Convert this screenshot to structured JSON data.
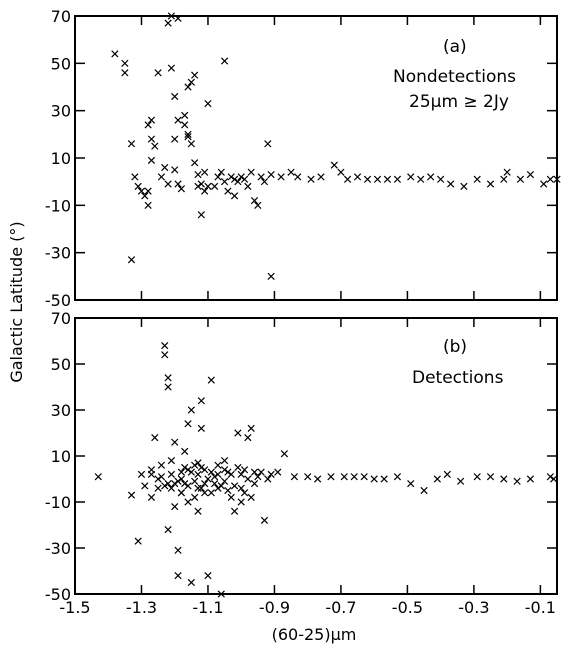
{
  "chart_data": [
    {
      "type": "scatter",
      "panel_label": "(a)",
      "annotations": [
        "Nondetections",
        "25μm ≥ 2Jy"
      ],
      "xlim": [
        -1.5,
        -0.05
      ],
      "ylim": [
        -50,
        70
      ],
      "yticks": [
        "70",
        "50",
        "30",
        "10",
        "-10",
        "-30",
        "-50"
      ],
      "points": [
        [
          -1.38,
          54
        ],
        [
          -1.35,
          50
        ],
        [
          -1.35,
          46
        ],
        [
          -1.33,
          16
        ],
        [
          -1.32,
          2
        ],
        [
          -1.31,
          -2
        ],
        [
          -1.3,
          -4
        ],
        [
          -1.29,
          -6
        ],
        [
          -1.28,
          -10
        ],
        [
          -1.28,
          -4
        ],
        [
          -1.28,
          24
        ],
        [
          -1.27,
          18
        ],
        [
          -1.27,
          26
        ],
        [
          -1.27,
          9
        ],
        [
          -1.26,
          15
        ],
        [
          -1.25,
          46
        ],
        [
          -1.24,
          2
        ],
        [
          -1.23,
          6
        ],
        [
          -1.22,
          -1
        ],
        [
          -1.22,
          67
        ],
        [
          -1.21,
          70
        ],
        [
          -1.21,
          48
        ],
        [
          -1.2,
          36
        ],
        [
          -1.2,
          18
        ],
        [
          -1.2,
          5
        ],
        [
          -1.19,
          69
        ],
        [
          -1.19,
          26
        ],
        [
          -1.19,
          -1
        ],
        [
          -1.18,
          -3
        ],
        [
          -1.17,
          28
        ],
        [
          -1.17,
          24
        ],
        [
          -1.16,
          40
        ],
        [
          -1.16,
          20
        ],
        [
          -1.16,
          19
        ],
        [
          -1.15,
          42
        ],
        [
          -1.15,
          16
        ],
        [
          -1.14,
          45
        ],
        [
          -1.14,
          8
        ],
        [
          -1.13,
          -2
        ],
        [
          -1.13,
          3
        ],
        [
          -1.12,
          -1
        ],
        [
          -1.12,
          -14
        ],
        [
          -1.11,
          4
        ],
        [
          -1.11,
          -4
        ],
        [
          -1.1,
          -2
        ],
        [
          -1.1,
          33
        ],
        [
          -1.08,
          -2
        ],
        [
          -1.07,
          2
        ],
        [
          -1.06,
          4
        ],
        [
          -1.05,
          51
        ],
        [
          -1.05,
          0
        ],
        [
          -1.04,
          -4
        ],
        [
          -1.03,
          2
        ],
        [
          -1.02,
          -6
        ],
        [
          -1.02,
          1
        ],
        [
          -1.01,
          0
        ],
        [
          -1.0,
          2
        ],
        [
          -0.99,
          1
        ],
        [
          -0.98,
          -2
        ],
        [
          -0.97,
          4
        ],
        [
          -0.96,
          -8
        ],
        [
          -0.95,
          -10
        ],
        [
          -0.94,
          2
        ],
        [
          -0.93,
          0
        ],
        [
          -0.92,
          16
        ],
        [
          -0.91,
          -40
        ],
        [
          -0.91,
          3
        ],
        [
          -0.88,
          2
        ],
        [
          -0.85,
          4
        ],
        [
          -0.83,
          2
        ],
        [
          -0.79,
          1
        ],
        [
          -0.76,
          2
        ],
        [
          -0.72,
          7
        ],
        [
          -0.7,
          4
        ],
        [
          -0.68,
          1
        ],
        [
          -0.65,
          2
        ],
        [
          -0.62,
          1
        ],
        [
          -0.59,
          1
        ],
        [
          -0.56,
          1
        ],
        [
          -0.53,
          1
        ],
        [
          -0.49,
          2
        ],
        [
          -0.46,
          1
        ],
        [
          -0.43,
          2
        ],
        [
          -0.4,
          1
        ],
        [
          -0.37,
          -1
        ],
        [
          -0.33,
          -2
        ],
        [
          -0.29,
          1
        ],
        [
          -0.25,
          -1
        ],
        [
          -0.21,
          1
        ],
        [
          -0.2,
          4
        ],
        [
          -0.16,
          1
        ],
        [
          -0.13,
          3
        ],
        [
          -0.09,
          -1
        ],
        [
          -0.07,
          1
        ],
        [
          -0.05,
          1
        ],
        [
          -1.33,
          -33
        ]
      ]
    },
    {
      "type": "scatter",
      "panel_label": "(b)",
      "annotations": [
        "Detections"
      ],
      "xlim": [
        -1.5,
        -0.05
      ],
      "ylim": [
        -50,
        70
      ],
      "yticks": [
        "70",
        "50",
        "30",
        "10",
        "-10",
        "-30",
        "-50"
      ],
      "xticks": [
        "-1.5",
        "-1.3",
        "-1.1",
        "-0.9",
        "-0.7",
        "-0.5",
        "-0.3",
        "-0.1"
      ],
      "xlabel": "(60-25)μm",
      "ylabel": "Galactic Latitude (°)",
      "points": [
        [
          -1.43,
          1
        ],
        [
          -1.33,
          -7
        ],
        [
          -1.31,
          -27
        ],
        [
          -1.3,
          2
        ],
        [
          -1.29,
          -3
        ],
        [
          -1.27,
          -8
        ],
        [
          -1.27,
          4
        ],
        [
          -1.26,
          18
        ],
        [
          -1.25,
          -4
        ],
        [
          -1.24,
          1
        ],
        [
          -1.23,
          58
        ],
        [
          -1.23,
          54
        ],
        [
          -1.22,
          44
        ],
        [
          -1.22,
          40
        ],
        [
          -1.22,
          -2
        ],
        [
          -1.22,
          -22
        ],
        [
          -1.21,
          -4
        ],
        [
          -1.21,
          8
        ],
        [
          -1.2,
          16
        ],
        [
          -1.2,
          -12
        ],
        [
          -1.19,
          -31
        ],
        [
          -1.19,
          -42
        ],
        [
          -1.18,
          3
        ],
        [
          -1.18,
          -6
        ],
        [
          -1.17,
          12
        ],
        [
          -1.17,
          -2
        ],
        [
          -1.16,
          24
        ],
        [
          -1.16,
          4
        ],
        [
          -1.16,
          -10
        ],
        [
          -1.15,
          30
        ],
        [
          -1.15,
          -45
        ],
        [
          -1.14,
          -8
        ],
        [
          -1.14,
          6
        ],
        [
          -1.13,
          2
        ],
        [
          -1.13,
          -14
        ],
        [
          -1.12,
          34
        ],
        [
          -1.12,
          22
        ],
        [
          -1.12,
          -4
        ],
        [
          -1.11,
          4
        ],
        [
          -1.11,
          -2
        ],
        [
          -1.1,
          -42
        ],
        [
          -1.09,
          43
        ],
        [
          -1.09,
          -6
        ],
        [
          -1.08,
          1
        ],
        [
          -1.07,
          2
        ],
        [
          -1.07,
          -4
        ],
        [
          -1.06,
          -50
        ],
        [
          -1.05,
          -1
        ],
        [
          -1.05,
          8
        ],
        [
          -1.04,
          3
        ],
        [
          -1.03,
          -8
        ],
        [
          -1.02,
          -14
        ],
        [
          -1.01,
          20
        ],
        [
          -1.0,
          2
        ],
        [
          -1.0,
          -10
        ],
        [
          -0.99,
          4
        ],
        [
          -0.98,
          18
        ],
        [
          -0.97,
          22
        ],
        [
          -0.96,
          -2
        ],
        [
          -0.95,
          1
        ],
        [
          -0.94,
          3
        ],
        [
          -0.93,
          -18
        ],
        [
          -0.92,
          0
        ],
        [
          -0.91,
          2
        ],
        [
          -0.89,
          3
        ],
        [
          -0.87,
          11
        ],
        [
          -0.84,
          1
        ],
        [
          -0.8,
          1
        ],
        [
          -0.77,
          0
        ],
        [
          -0.73,
          1
        ],
        [
          -0.69,
          1
        ],
        [
          -0.66,
          1
        ],
        [
          -0.63,
          1
        ],
        [
          -0.6,
          0
        ],
        [
          -0.57,
          0
        ],
        [
          -0.53,
          1
        ],
        [
          -0.49,
          -2
        ],
        [
          -0.45,
          -5
        ],
        [
          -0.41,
          0
        ],
        [
          -0.38,
          2
        ],
        [
          -0.34,
          -1
        ],
        [
          -0.29,
          1
        ],
        [
          -0.25,
          1
        ],
        [
          -0.21,
          0
        ],
        [
          -0.17,
          -1
        ],
        [
          -0.13,
          0
        ],
        [
          -0.07,
          1
        ],
        [
          -0.06,
          0
        ],
        [
          -1.25,
          0
        ],
        [
          -1.24,
          6
        ],
        [
          -1.21,
          2
        ],
        [
          -1.19,
          -1
        ],
        [
          -1.18,
          0
        ],
        [
          -1.17,
          5
        ],
        [
          -1.16,
          -3
        ],
        [
          -1.15,
          3
        ],
        [
          -1.14,
          -1
        ],
        [
          -1.13,
          7
        ],
        [
          -1.12,
          5
        ],
        [
          -1.11,
          -6
        ],
        [
          -1.1,
          0
        ],
        [
          -1.09,
          3
        ],
        [
          -1.08,
          -2
        ],
        [
          -1.07,
          6
        ],
        [
          -1.06,
          -3
        ],
        [
          -1.05,
          4
        ],
        [
          -1.04,
          -5
        ],
        [
          -1.03,
          2
        ],
        [
          -1.02,
          -3
        ],
        [
          -1.01,
          5
        ],
        [
          -1.0,
          -4
        ],
        [
          -0.99,
          -6
        ],
        [
          -0.98,
          0
        ],
        [
          -0.97,
          -8
        ],
        [
          -0.96,
          3
        ],
        [
          -1.27,
          2
        ],
        [
          -1.23,
          -3
        ],
        [
          -1.2,
          -2
        ],
        [
          -1.18,
          -6
        ],
        [
          -1.13,
          -4
        ]
      ]
    }
  ]
}
